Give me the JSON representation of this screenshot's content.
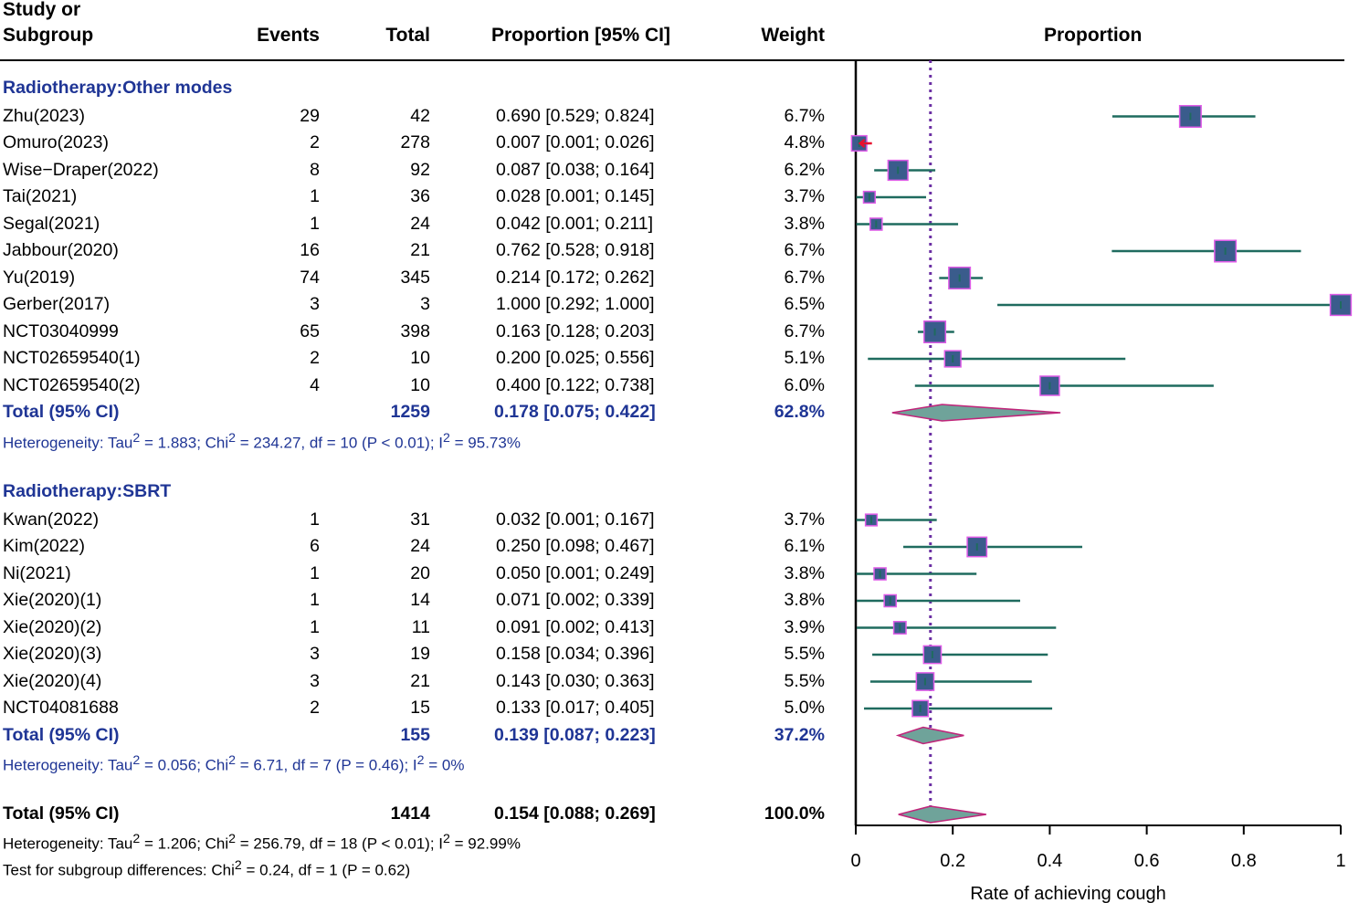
{
  "headers": {
    "study_line1": "Study or",
    "study_line2": "Subgroup",
    "events": "Events",
    "total": "Total",
    "ci": "Proportion [95% CI]",
    "weight": "Weight",
    "plot": "Proportion"
  },
  "groups": [
    {
      "title": "Radiotherapy:Other modes",
      "studies": [
        {
          "name": "Zhu(2023)",
          "events": "29",
          "total": "42",
          "ci": "0.690 [0.529; 0.824]",
          "weight": "6.7%",
          "p": 0.69,
          "lo": 0.529,
          "hi": 0.824,
          "w": 6.7
        },
        {
          "name": "Omuro(2023)",
          "events": "2",
          "total": "278",
          "ci": "0.007 [0.001; 0.026]",
          "weight": "4.8%",
          "p": 0.007,
          "lo": 0.001,
          "hi": 0.026,
          "w": 4.8
        },
        {
          "name": "Wise−Draper(2022)",
          "events": "8",
          "total": "92",
          "ci": "0.087 [0.038; 0.164]",
          "weight": "6.2%",
          "p": 0.087,
          "lo": 0.038,
          "hi": 0.164,
          "w": 6.2
        },
        {
          "name": "Tai(2021)",
          "events": "1",
          "total": "36",
          "ci": "0.028 [0.001; 0.145]",
          "weight": "3.7%",
          "p": 0.028,
          "lo": 0.001,
          "hi": 0.145,
          "w": 3.7
        },
        {
          "name": "Segal(2021)",
          "events": "1",
          "total": "24",
          "ci": "0.042 [0.001; 0.211]",
          "weight": "3.8%",
          "p": 0.042,
          "lo": 0.001,
          "hi": 0.211,
          "w": 3.8
        },
        {
          "name": "Jabbour(2020)",
          "events": "16",
          "total": "21",
          "ci": "0.762 [0.528; 0.918]",
          "weight": "6.7%",
          "p": 0.762,
          "lo": 0.528,
          "hi": 0.918,
          "w": 6.7
        },
        {
          "name": "Yu(2019)",
          "events": "74",
          "total": "345",
          "ci": "0.214 [0.172; 0.262]",
          "weight": "6.7%",
          "p": 0.214,
          "lo": 0.172,
          "hi": 0.262,
          "w": 6.7
        },
        {
          "name": "Gerber(2017)",
          "events": "3",
          "total": "3",
          "ci": "1.000 [0.292; 1.000]",
          "weight": "6.5%",
          "p": 1.0,
          "lo": 0.292,
          "hi": 1.0,
          "w": 6.5
        },
        {
          "name": "NCT03040999",
          "events": "65",
          "total": "398",
          "ci": "0.163 [0.128; 0.203]",
          "weight": "6.7%",
          "p": 0.163,
          "lo": 0.128,
          "hi": 0.203,
          "w": 6.7
        },
        {
          "name": "NCT02659540(1)",
          "events": "2",
          "total": "10",
          "ci": "0.200 [0.025; 0.556]",
          "weight": "5.1%",
          "p": 0.2,
          "lo": 0.025,
          "hi": 0.556,
          "w": 5.1
        },
        {
          "name": "NCT02659540(2)",
          "events": "4",
          "total": "10",
          "ci": "0.400 [0.122; 0.738]",
          "weight": "6.0%",
          "p": 0.4,
          "lo": 0.122,
          "hi": 0.738,
          "w": 6.0
        }
      ],
      "total": {
        "label": "Total (95% CI)",
        "total": "1259",
        "ci": "0.178 [0.075; 0.422]",
        "weight": "62.8%",
        "p": 0.178,
        "lo": 0.075,
        "hi": 0.422
      },
      "heterogeneity": {
        "pre": "Heterogeneity: Tau",
        "sup1": "2",
        "mid1": " = 1.883; Chi",
        "sup2": "2",
        "mid2": " = 234.27, df = 10 (P < 0.01); I",
        "sup3": "2",
        "post": " = 95.73%"
      }
    },
    {
      "title": "Radiotherapy:SBRT",
      "studies": [
        {
          "name": "Kwan(2022)",
          "events": "1",
          "total": "31",
          "ci": "0.032 [0.001; 0.167]",
          "weight": "3.7%",
          "p": 0.032,
          "lo": 0.001,
          "hi": 0.167,
          "w": 3.7
        },
        {
          "name": "Kim(2022)",
          "events": "6",
          "total": "24",
          "ci": "0.250 [0.098; 0.467]",
          "weight": "6.1%",
          "p": 0.25,
          "lo": 0.098,
          "hi": 0.467,
          "w": 6.1
        },
        {
          "name": "Ni(2021)",
          "events": "1",
          "total": "20",
          "ci": "0.050 [0.001; 0.249]",
          "weight": "3.8%",
          "p": 0.05,
          "lo": 0.001,
          "hi": 0.249,
          "w": 3.8
        },
        {
          "name": "Xie(2020)(1)",
          "events": "1",
          "total": "14",
          "ci": "0.071 [0.002; 0.339]",
          "weight": "3.8%",
          "p": 0.071,
          "lo": 0.002,
          "hi": 0.339,
          "w": 3.8
        },
        {
          "name": "Xie(2020)(2)",
          "events": "1",
          "total": "11",
          "ci": "0.091 [0.002; 0.413]",
          "weight": "3.9%",
          "p": 0.091,
          "lo": 0.002,
          "hi": 0.413,
          "w": 3.9
        },
        {
          "name": "Xie(2020)(3)",
          "events": "3",
          "total": "19",
          "ci": "0.158 [0.034; 0.396]",
          "weight": "5.5%",
          "p": 0.158,
          "lo": 0.034,
          "hi": 0.396,
          "w": 5.5
        },
        {
          "name": "Xie(2020)(4)",
          "events": "3",
          "total": "21",
          "ci": "0.143 [0.030; 0.363]",
          "weight": "5.5%",
          "p": 0.143,
          "lo": 0.03,
          "hi": 0.363,
          "w": 5.5
        },
        {
          "name": "NCT04081688",
          "events": "2",
          "total": "15",
          "ci": "0.133 [0.017; 0.405]",
          "weight": "5.0%",
          "p": 0.133,
          "lo": 0.017,
          "hi": 0.405,
          "w": 5.0
        }
      ],
      "total": {
        "label": "Total (95% CI)",
        "total": "155",
        "ci": "0.139 [0.087; 0.223]",
        "weight": "37.2%",
        "p": 0.139,
        "lo": 0.087,
        "hi": 0.223
      },
      "heterogeneity": {
        "pre": "Heterogeneity: Tau",
        "sup1": "2",
        "mid1": " = 0.056; Chi",
        "sup2": "2",
        "mid2": " = 6.71, df = 7 (P = 0.46); I",
        "sup3": "2",
        "post": " = 0%"
      }
    }
  ],
  "overall": {
    "label": "Total (95% CI)",
    "total": "1414",
    "ci": "0.154 [0.088; 0.269]",
    "weight": "100.0%",
    "p": 0.154,
    "lo": 0.088,
    "hi": 0.269,
    "heterogeneity": {
      "pre": "Heterogeneity: Tau",
      "sup1": "2",
      "mid1": " = 1.206; Chi",
      "sup2": "2",
      "mid2": " = 256.79, df = 18 (P < 0.01); I",
      "sup3": "2",
      "post": " = 92.99%"
    },
    "subgroup_test": {
      "pre": "Test for subgroup differences: Chi",
      "sup1": "2",
      "post": " = 0.24, df = 1 (P = 0.62)"
    }
  },
  "chart_data": {
    "type": "forest",
    "title": "Proportion",
    "xlabel": "Rate of achieving cough",
    "xlim": [
      0,
      1
    ],
    "xticks": [
      "0",
      "0.2",
      "0.4",
      "0.6",
      "0.8",
      "1"
    ],
    "reference_line": 0.154
  },
  "colors": {
    "square_fill": "#3a5c8c",
    "square_border": "#e05ce8",
    "ci_line": "#1f6b5f",
    "diamond_fill": "#6fa39a",
    "diamond_border": "#c0257a",
    "ref_line": "#6b2fa3",
    "arrow": "#e8102f",
    "subgroup_text": "#1f3595"
  }
}
